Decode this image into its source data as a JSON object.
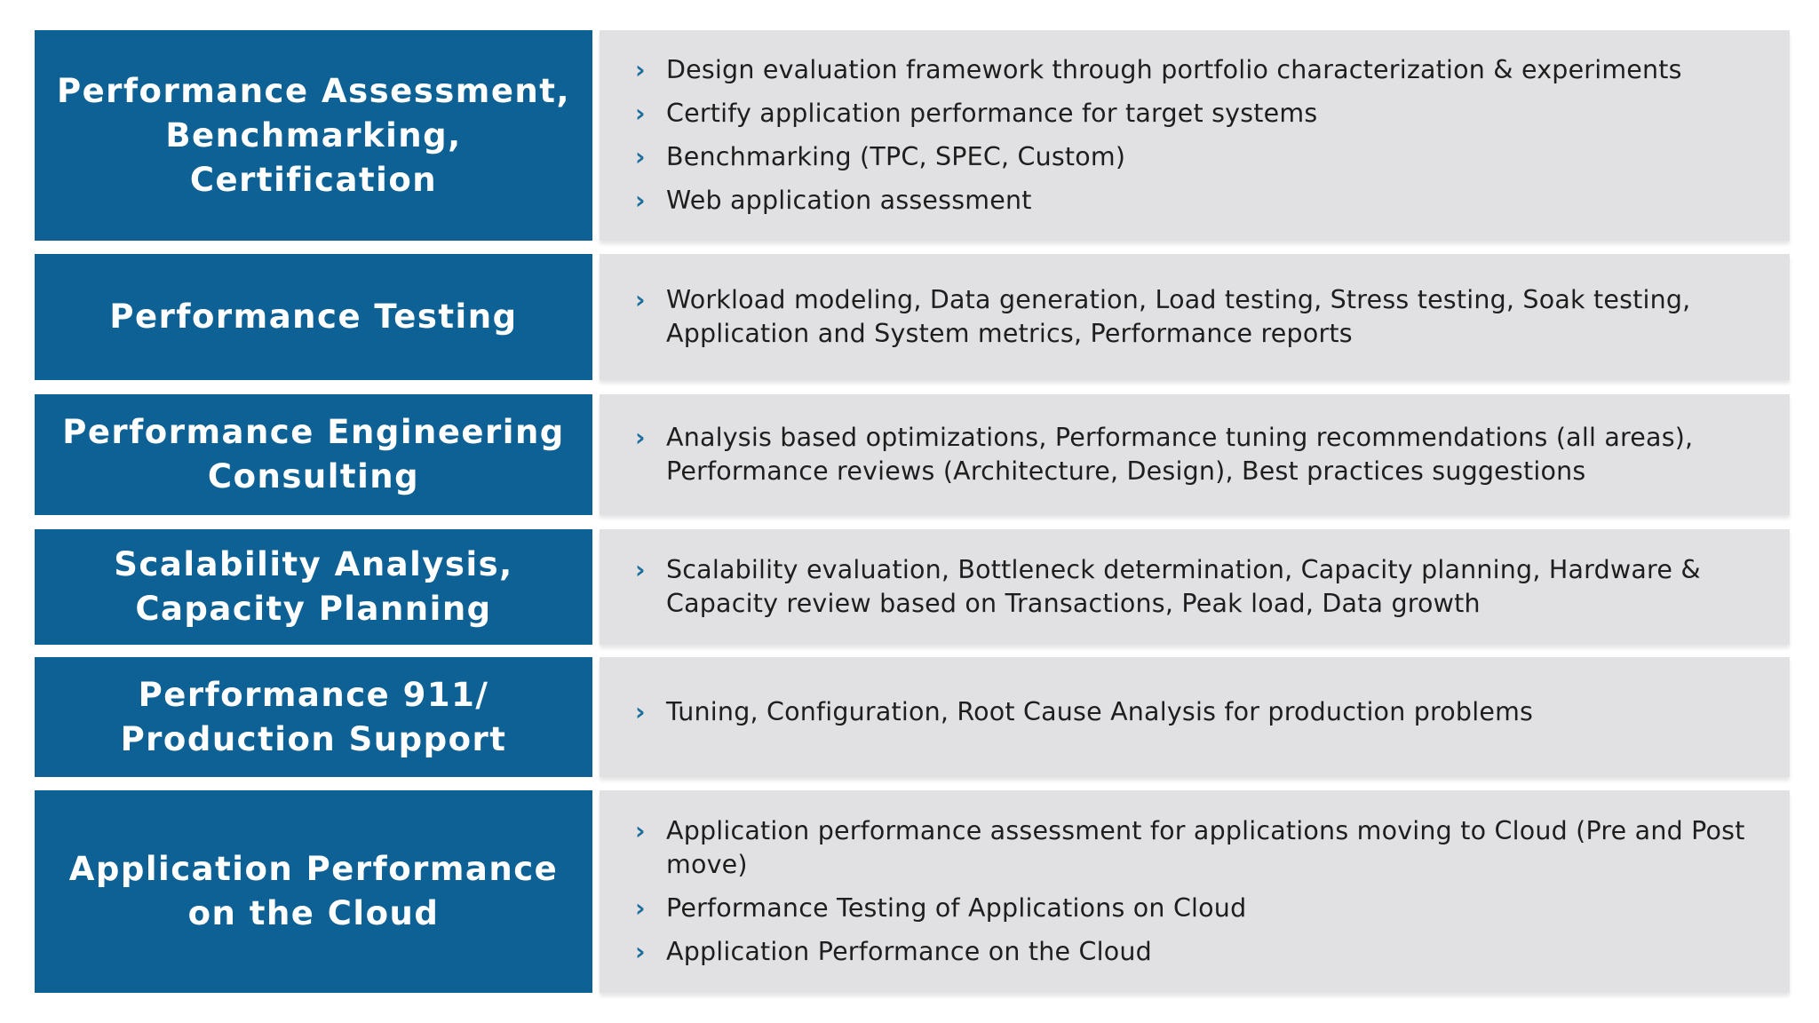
{
  "rows": [
    {
      "title": "Performance Assessment,\nBenchmarking, Certification",
      "bullets": [
        "Design evaluation framework through portfolio characterization & experiments",
        "Certify application performance for target systems",
        "Benchmarking (TPC, SPEC, Custom)",
        "Web application assessment"
      ]
    },
    {
      "title": "Performance Testing",
      "bullets": [
        "Workload modeling, Data generation, Load testing, Stress testing, Soak testing, Application and System metrics, Performance reports"
      ]
    },
    {
      "title": "Performance Engineering\nConsulting",
      "bullets": [
        "Analysis based optimizations, Performance tuning recommendations (all areas), Performance reviews (Architecture, Design), Best practices suggestions"
      ]
    },
    {
      "title": "Scalability Analysis,\nCapacity Planning",
      "bullets": [
        "Scalability evaluation, Bottleneck determination, Capacity planning, Hardware & Capacity review based on Transactions, Peak load, Data growth"
      ]
    },
    {
      "title": "Performance 911/\nProduction Support",
      "bullets": [
        "Tuning, Configuration, Root Cause Analysis for production problems"
      ]
    },
    {
      "title": "Application Performance\non the Cloud",
      "bullets": [
        "Application performance assessment for applications moving to Cloud (Pre and Post move)",
        "Performance Testing of Applications on Cloud",
        "Application Performance on the Cloud"
      ]
    }
  ],
  "icons": {
    "bullet": "chevron-right-icon"
  },
  "colors": {
    "category_bg": "#0d6195",
    "description_bg": "#e1e1e3",
    "chevron": "#1d6e9d",
    "text": "#1e1e1e"
  }
}
